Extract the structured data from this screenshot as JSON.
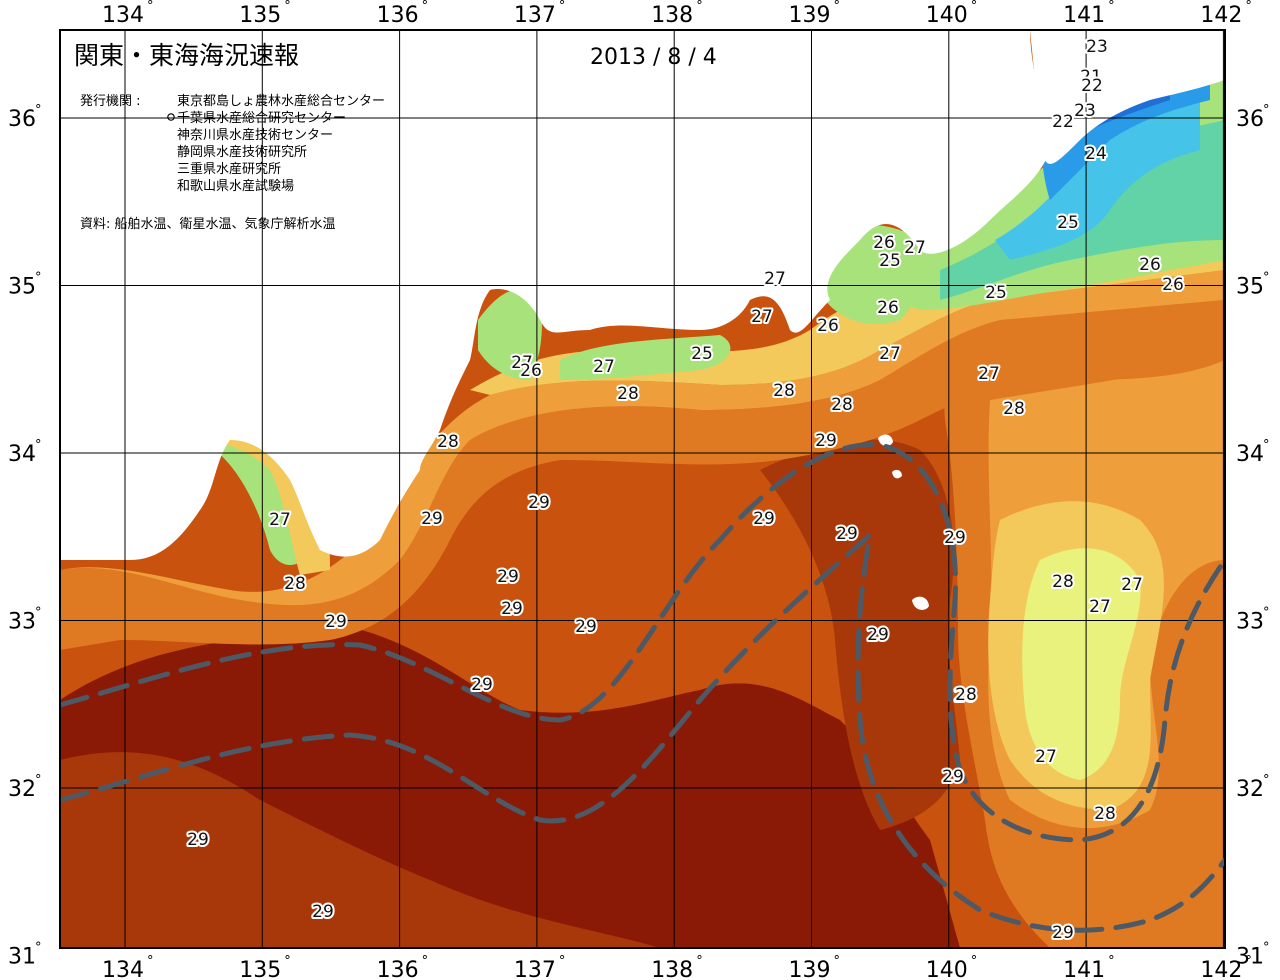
{
  "title": "関東・東海海況速報",
  "date": "2013 / 8 / 4",
  "issuer_label": "発行機関 :",
  "issuers": [
    "東京都島しょ農林水産総合センター",
    "千葉県水産総合研究センター",
    "神奈川県水産技術センター",
    "静岡県水産技術研究所",
    "三重県水産研究所",
    "和歌山県水産試験場"
  ],
  "source": "資料: 船舶水温、衛星水温、気象庁解析水温",
  "x_ticks": [
    "134",
    "135",
    "136",
    "137",
    "138",
    "139",
    "140",
    "141",
    "142"
  ],
  "y_ticks": [
    "36",
    "35",
    "34",
    "33",
    "32",
    "31"
  ],
  "degree_symbol": "°",
  "contour_labels": [
    "23",
    "21",
    "22",
    "23",
    "22",
    "24",
    "25",
    "26",
    "27",
    "25",
    "26",
    "26",
    "25",
    "27",
    "27",
    "26",
    "26",
    "27",
    "25",
    "27",
    "27",
    "28",
    "26",
    "27",
    "28",
    "28",
    "28",
    "29",
    "28",
    "27",
    "29",
    "29",
    "28",
    "29",
    "29",
    "29",
    "29",
    "29",
    "29",
    "29",
    "29",
    "29",
    "28",
    "27",
    "27",
    "28",
    "28",
    "27",
    "29",
    "28",
    "29",
    "29",
    "29"
  ],
  "colors": {
    "land": "#ffffff",
    "c21": "#1e3fa8",
    "c22": "#1f6fd6",
    "c23": "#2a9be8",
    "c24": "#46c3e8",
    "c25": "#62d3a6",
    "c26": "#a8e27a",
    "c27": "#e9f27c",
    "c27b": "#f2c95a",
    "c28": "#ee9e3a",
    "c28b": "#e07a22",
    "c29": "#c9520e",
    "c29b": "#a8380a",
    "c30": "#8a1a06",
    "current": "#4d5a66"
  }
}
